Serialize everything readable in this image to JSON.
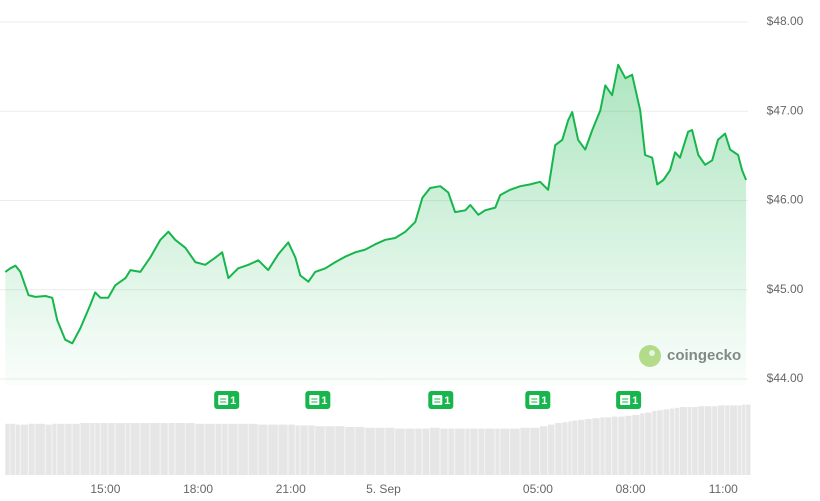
{
  "chart_data": {
    "type": "line",
    "x": [
      11.76,
      11.92,
      12.09,
      12.25,
      12.51,
      12.73,
      13.06,
      13.28,
      13.44,
      13.7,
      13.93,
      14.19,
      14.51,
      14.67,
      14.84,
      15.09,
      15.32,
      15.65,
      15.81,
      16.13,
      16.45,
      16.78,
      17.04,
      17.26,
      17.59,
      17.91,
      18.23,
      18.56,
      18.78,
      18.98,
      19.3,
      19.63,
      19.95,
      20.27,
      20.6,
      20.92,
      21.15,
      21.31,
      21.57,
      21.79,
      22.12,
      22.44,
      22.76,
      23.09,
      23.41,
      23.74,
      24.06,
      24.38,
      24.71,
      25.03,
      25.26,
      25.51,
      25.84,
      26.1,
      26.32,
      26.65,
      26.81,
      27.07,
      27.29,
      27.62,
      27.78,
      28.1,
      28.43,
      28.75,
      29.07,
      29.33,
      29.56,
      29.79,
      29.98,
      30.11,
      30.3,
      30.53,
      30.76,
      31.02,
      31.18,
      31.4,
      31.6,
      31.83,
      32.05,
      32.31,
      32.47,
      32.7,
      32.86,
      33.06,
      33.28,
      33.44,
      33.6,
      33.86,
      33.99,
      34.19,
      34.41,
      34.64,
      34.83,
      35.06,
      35.22,
      35.48,
      35.61,
      35.74
    ],
    "series": [
      {
        "color": "#16b64c",
        "values": [
          45.2,
          45.24,
          45.27,
          45.2,
          44.94,
          44.92,
          44.93,
          44.91,
          44.66,
          44.44,
          44.4,
          44.57,
          44.83,
          44.97,
          44.91,
          44.91,
          45.05,
          45.13,
          45.22,
          45.2,
          45.36,
          45.56,
          45.65,
          45.56,
          45.47,
          45.31,
          45.28,
          45.36,
          45.42,
          45.13,
          45.24,
          45.28,
          45.33,
          45.22,
          45.4,
          45.53,
          45.36,
          45.16,
          45.09,
          45.2,
          45.24,
          45.31,
          45.37,
          45.42,
          45.45,
          45.51,
          45.56,
          45.58,
          45.65,
          45.76,
          46.03,
          46.14,
          46.16,
          46.09,
          45.87,
          45.89,
          45.95,
          45.84,
          45.89,
          45.92,
          46.06,
          46.12,
          46.16,
          46.18,
          46.21,
          46.12,
          46.62,
          46.68,
          46.9,
          46.99,
          46.68,
          46.57,
          46.79,
          47.01,
          47.29,
          47.18,
          47.52,
          47.37,
          47.41,
          47.01,
          46.51,
          46.48,
          46.18,
          46.23,
          46.34,
          46.54,
          46.48,
          46.77,
          46.79,
          46.51,
          46.4,
          46.45,
          46.68,
          46.75,
          46.57,
          46.51,
          46.34,
          46.23
        ]
      },
      {
        "axis": "y2",
        "color": "#e6e6e6",
        "values": [
          64,
          64,
          63,
          63,
          64,
          64,
          63,
          64,
          64,
          64,
          64,
          65,
          65,
          65,
          65,
          65,
          65,
          65,
          65,
          65,
          65,
          65,
          65,
          65,
          65,
          64,
          64,
          64,
          64,
          64,
          64,
          64,
          63,
          63,
          63,
          63,
          62,
          62,
          62,
          61,
          61,
          61,
          60,
          60,
          59,
          59,
          59,
          58,
          58,
          58,
          58,
          59,
          58,
          58,
          58,
          58,
          58,
          58,
          58,
          58,
          58,
          58,
          59,
          59,
          61,
          63,
          65,
          66,
          67,
          68,
          69,
          70,
          71,
          72,
          72,
          73,
          73,
          74,
          75,
          77,
          78,
          80,
          81,
          82,
          83,
          84,
          85,
          85,
          85,
          86,
          86,
          86,
          87,
          87,
          87,
          87,
          88,
          88
        ]
      }
    ],
    "xlim": [
      11.75,
      35.8
    ],
    "xticks": [
      {
        "value": 15,
        "label": "15:00"
      },
      {
        "value": 18,
        "label": "18:00"
      },
      {
        "value": 21,
        "label": "21:00"
      },
      {
        "value": 24,
        "label": "5. Sep"
      },
      {
        "value": 29,
        "label": "05:00"
      },
      {
        "value": 32,
        "label": "08:00"
      },
      {
        "value": 35,
        "label": "11:00"
      }
    ],
    "ylim": [
      44,
      48
    ],
    "yticks": [
      {
        "value": 44,
        "label": "$44.00"
      },
      {
        "value": 45,
        "label": "$45.00"
      },
      {
        "value": 46,
        "label": "$46.00"
      },
      {
        "value": 47,
        "label": "$47.00"
      },
      {
        "value": 48,
        "label": "$48.00"
      }
    ],
    "y2lim": [
      0,
      100
    ],
    "grid": true,
    "annotations": [
      {
        "x": 18.91,
        "label": "1"
      },
      {
        "x": 21.86,
        "label": "1"
      },
      {
        "x": 25.84,
        "label": "1"
      },
      {
        "x": 28.98,
        "label": "1"
      },
      {
        "x": 31.92,
        "label": "1"
      }
    ],
    "watermark": "coingecko"
  }
}
